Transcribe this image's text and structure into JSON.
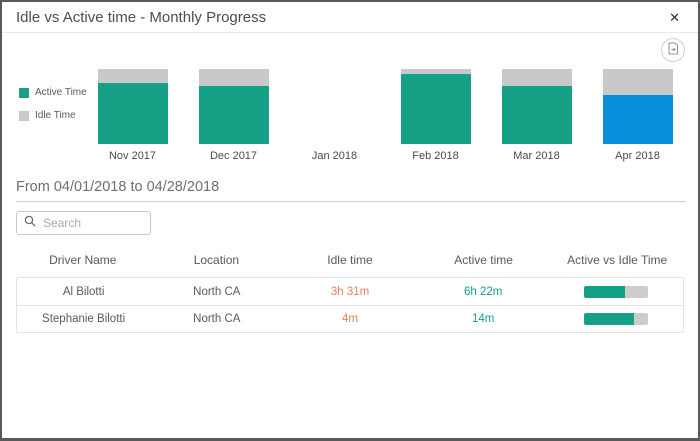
{
  "modal": {
    "title": "Idle vs Active time - Monthly Progress",
    "close_glyph": "✕"
  },
  "colors": {
    "active_teal": "#16a187",
    "idle_gray": "#c9c9c9",
    "selected_blue": "#0a90da",
    "idle_text_orange": "#e5825a",
    "active_text_teal": "#16a187"
  },
  "chart_data": {
    "type": "bar",
    "stacked": true,
    "units": "percent of month total (estimated from bar heights)",
    "categories": [
      "Nov 2017",
      "Dec 2017",
      "Jan 2018",
      "Feb 2018",
      "Mar 2018",
      "Apr 2018"
    ],
    "series": [
      {
        "name": "Active Time",
        "color": "#16a187",
        "values": [
          81,
          77,
          0,
          93,
          78,
          66
        ]
      },
      {
        "name": "Idle Time",
        "color": "#c9c9c9",
        "values": [
          19,
          23,
          0,
          7,
          22,
          34
        ]
      }
    ],
    "highlight": {
      "index": 5,
      "color": "#0a90da",
      "meaning": "selected month (Apr 2018)"
    },
    "legend_position": "left",
    "grid": false,
    "ylim": [
      0,
      100
    ]
  },
  "filter": {
    "date_range_label": "From 04/01/2018 to 04/28/2018"
  },
  "search": {
    "placeholder": "Search",
    "value": ""
  },
  "table": {
    "headers": [
      "Driver Name",
      "Location",
      "Idle time",
      "Active time",
      "Active vs Idle Time"
    ],
    "rows": [
      {
        "driver": "Al Bilotti",
        "location": "North CA",
        "idle_time": "3h 31m",
        "active_time": "6h 22m",
        "active_pct": 64
      },
      {
        "driver": "Stephanie Bilotti",
        "location": "North CA",
        "idle_time": "4m",
        "active_time": "14m",
        "active_pct": 78
      }
    ]
  }
}
